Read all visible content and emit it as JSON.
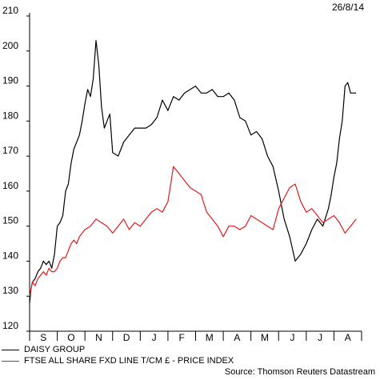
{
  "date_label": "26/8/14",
  "source": "Source: Thomson Reuters Datastream",
  "chart_data": {
    "type": "line",
    "ylim": [
      120,
      210
    ],
    "yticks": [
      120,
      130,
      140,
      150,
      160,
      170,
      180,
      190,
      200,
      210
    ],
    "xlim": [
      0,
      12
    ],
    "months": [
      "S",
      "O",
      "N",
      "D",
      "J",
      "F",
      "M",
      "A",
      "M",
      "J",
      "J",
      "A"
    ],
    "grid": false,
    "legend_position": "bottom-left",
    "series": [
      {
        "name": "DAISY GROUP",
        "color": "#000000",
        "x": [
          0,
          0.05,
          0.1,
          0.2,
          0.3,
          0.4,
          0.5,
          0.6,
          0.7,
          0.8,
          0.9,
          1.0,
          1.1,
          1.2,
          1.3,
          1.4,
          1.5,
          1.6,
          1.7,
          1.8,
          1.9,
          2.0,
          2.1,
          2.2,
          2.3,
          2.4,
          2.5,
          2.6,
          2.7,
          2.8,
          2.9,
          3.0,
          3.2,
          3.4,
          3.6,
          3.8,
          4.0,
          4.2,
          4.4,
          4.6,
          4.8,
          5.0,
          5.2,
          5.4,
          5.6,
          5.8,
          6.0,
          6.2,
          6.4,
          6.6,
          6.8,
          7.0,
          7.2,
          7.4,
          7.6,
          7.8,
          8.0,
          8.2,
          8.4,
          8.6,
          8.8,
          9.0,
          9.2,
          9.4,
          9.6,
          9.8,
          10.0,
          10.2,
          10.4,
          10.6,
          10.8,
          10.9,
          11.0,
          11.1,
          11.2,
          11.3,
          11.4,
          11.5,
          11.6,
          11.7,
          11.8
        ],
        "y": [
          128,
          132,
          134,
          135,
          137,
          138,
          140,
          139,
          140,
          138,
          142,
          150,
          151,
          153,
          160,
          162,
          168,
          172,
          174,
          176,
          180,
          185,
          189,
          187,
          192,
          203,
          196,
          184,
          178,
          180,
          182,
          171,
          170,
          174,
          176,
          178,
          178,
          178,
          179,
          181,
          186,
          183,
          187,
          186,
          188,
          189,
          190,
          188,
          188,
          189,
          187,
          187,
          188,
          186,
          181,
          180,
          176,
          177,
          175,
          170,
          167,
          160,
          152,
          147,
          140,
          142,
          145,
          149,
          152,
          150,
          155,
          159,
          164,
          168,
          175,
          180,
          190,
          191,
          188,
          188,
          188
        ]
      },
      {
        "name": "FTSE ALL SHARE FXD LINE T/CM £ - PRICE INDEX",
        "color": "#e31a1c",
        "x": [
          0,
          0.05,
          0.1,
          0.2,
          0.3,
          0.4,
          0.5,
          0.6,
          0.7,
          0.8,
          0.9,
          1.0,
          1.1,
          1.2,
          1.3,
          1.4,
          1.5,
          1.6,
          1.7,
          1.8,
          1.9,
          2.0,
          2.2,
          2.4,
          2.6,
          2.8,
          3.0,
          3.2,
          3.4,
          3.6,
          3.8,
          4.0,
          4.2,
          4.4,
          4.6,
          4.8,
          5.0,
          5.1,
          5.2,
          5.3,
          5.4,
          5.6,
          5.8,
          6.0,
          6.2,
          6.4,
          6.6,
          6.8,
          7.0,
          7.2,
          7.4,
          7.6,
          7.8,
          8.0,
          8.2,
          8.4,
          8.6,
          8.8,
          9.0,
          9.2,
          9.4,
          9.6,
          9.8,
          10.0,
          10.2,
          10.4,
          10.6,
          10.8,
          11.0,
          11.2,
          11.4,
          11.6,
          11.8
        ],
        "y": [
          130,
          132,
          134,
          133,
          135,
          136,
          137,
          136,
          138,
          137,
          137,
          138,
          140,
          141,
          141,
          143,
          145,
          146,
          145,
          147,
          148,
          149,
          150,
          152,
          151,
          150,
          148,
          150,
          152,
          149,
          151,
          150,
          152,
          154,
          155,
          154,
          157,
          162,
          167,
          166,
          165,
          163,
          161,
          160,
          159,
          154,
          152,
          150,
          147,
          150,
          150,
          149,
          150,
          153,
          152,
          151,
          150,
          149,
          155,
          158,
          161,
          162,
          157,
          154,
          155,
          153,
          151,
          152,
          153,
          151,
          148,
          150,
          152
        ]
      }
    ]
  }
}
